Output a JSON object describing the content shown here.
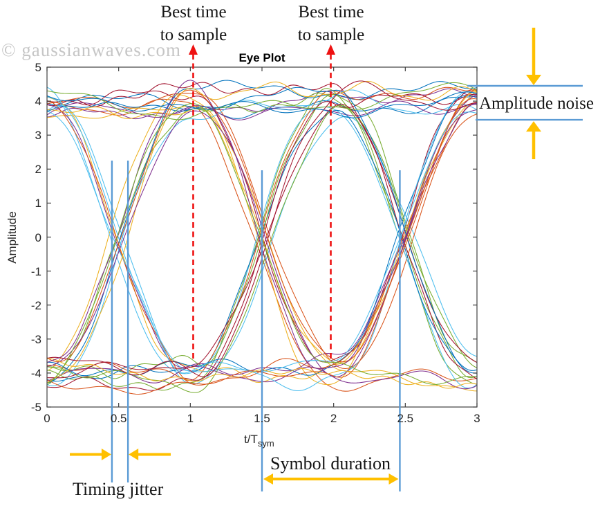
{
  "watermark": "© gaussianwaves.com",
  "plot": {
    "title": "Eye Plot",
    "xlabel_main": "t/T",
    "xlabel_sub": "sym",
    "ylabel": "Amplitude",
    "x_tick_labels": [
      "0",
      "0.5",
      "1",
      "1.5",
      "2",
      "2.5",
      "3"
    ],
    "x_tick_values": [
      0,
      0.5,
      1,
      1.5,
      2,
      2.5,
      3
    ],
    "y_tick_labels": [
      "5",
      "4",
      "3",
      "2",
      "1",
      "0",
      "-1",
      "-2",
      "-3",
      "-4",
      "-5"
    ],
    "y_tick_values": [
      5,
      4,
      3,
      2,
      1,
      0,
      -1,
      -2,
      -3,
      -4,
      -5
    ]
  },
  "annotations": {
    "best_time_1": "Best time\nto sample",
    "best_time_2": "Best time\nto sample",
    "amplitude_noise": "Amplitude noise",
    "timing_jitter": "Timing jitter",
    "symbol_duration": "Symbol duration"
  },
  "colors": {
    "annotation_yellow": "#FFC000",
    "annotation_blue": "#5B9BD5",
    "annotation_red": "#EE1111",
    "axis_gray": "#3f3f3f",
    "tick_label_gray": "#262626",
    "watermark_gray": "#c6c6c6"
  },
  "chart_data": {
    "type": "line",
    "title": "Eye Plot",
    "xlabel": "t/T_sym",
    "ylabel": "Amplitude",
    "xlim": [
      0,
      3
    ],
    "ylim": [
      -5,
      5
    ],
    "x_ticks": [
      0,
      0.5,
      1,
      1.5,
      2,
      2.5,
      3
    ],
    "y_ticks": [
      5,
      4,
      3,
      2,
      1,
      0,
      -1,
      -2,
      -3,
      -4,
      -5
    ],
    "grid": false,
    "legend": "none",
    "description": "Eye diagram: ~40 overlaid pulse-shaped binary symbol traces (levels ±4) across 3 normalized symbol periods, with eye crossings at t/Tsym = 0.5, 1.5, 2.5 and widest eye opening at t/Tsym = 1 and 2.",
    "eye": {
      "num_traces": 40,
      "levels": [
        4,
        -4
      ],
      "level_noise": 0.4,
      "seed": 9,
      "points_per_trace": 151,
      "best_sample_times": [
        1.02,
        1.98
      ],
      "crossing_times": [
        0.5,
        1.5,
        2.5
      ],
      "timing_jitter_span": [
        0.453,
        0.565
      ],
      "symbol_duration_span": [
        1.5,
        2.462
      ],
      "amplitude_noise_band": [
        3.45,
        4.45
      ]
    },
    "trace_colors": [
      "#0072BD",
      "#D95319",
      "#EDB120",
      "#7E2F8E",
      "#77AC30",
      "#4DBEEE",
      "#A2142F"
    ]
  }
}
